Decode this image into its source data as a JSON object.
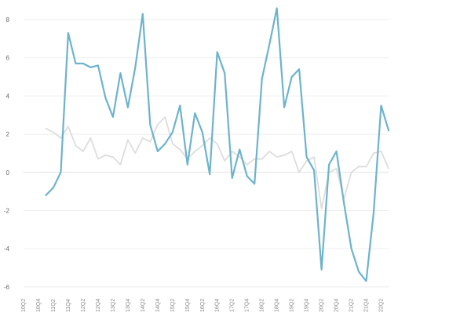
{
  "chart_data": {
    "type": "line",
    "title": "",
    "xlabel": "",
    "ylabel": "",
    "ylim": [
      -6.5,
      8.7
    ],
    "y_ticks": [
      -6,
      -4,
      -2,
      0,
      2,
      4,
      6,
      8
    ],
    "grid": true,
    "x": [
      "10Q2",
      "10Q3",
      "10Q4",
      "11Q1",
      "11Q2",
      "11Q3",
      "11Q4",
      "12Q1",
      "12Q2",
      "12Q3",
      "12Q4",
      "13Q1",
      "13Q2",
      "13Q3",
      "13Q4",
      "14Q1",
      "14Q2",
      "14Q3",
      "14Q4",
      "15Q1",
      "15Q2",
      "15Q3",
      "15Q4",
      "16Q1",
      "16Q2",
      "16Q3",
      "16Q4",
      "17Q1",
      "17Q2",
      "17Q3",
      "17Q4",
      "18Q1",
      "18Q2",
      "18Q3",
      "18Q4",
      "19Q1",
      "19Q2",
      "19Q3",
      "19Q4",
      "20Q1",
      "20Q2",
      "20Q3",
      "20Q4",
      "21Q1",
      "21Q2",
      "21Q3",
      "21Q4",
      "22Q1",
      "22Q2",
      "22Q3"
    ],
    "x_tick_labels": [
      "10Q2",
      "10Q4",
      "11Q2",
      "11Q4",
      "12Q2",
      "12Q4",
      "13Q2",
      "13Q4",
      "14Q2",
      "14Q4",
      "15Q2",
      "15Q4",
      "16Q2",
      "16Q4",
      "17Q2",
      "17Q4",
      "18Q2",
      "18Q4",
      "19Q2",
      "19Q4",
      "20Q2",
      "20Q4",
      "21Q2",
      "21Q4",
      "22Q2"
    ],
    "series": [
      {
        "color": "#6db3cb",
        "values": [
          null,
          null,
          null,
          -1.2,
          -0.8,
          0.0,
          7.3,
          5.7,
          5.7,
          5.5,
          5.6,
          3.9,
          2.9,
          5.2,
          3.4,
          5.5,
          8.3,
          2.5,
          1.1,
          1.5,
          2.1,
          3.5,
          0.4,
          3.1,
          2.1,
          -0.1,
          6.3,
          5.2,
          -0.3,
          1.2,
          -0.2,
          -0.6,
          4.9,
          6.7,
          8.6,
          3.4,
          5.0,
          5.4,
          0.8,
          0.1,
          -5.1,
          0.4,
          1.1,
          -1.6,
          -4.0,
          -5.2,
          -5.7,
          -2.1,
          3.5,
          2.2
        ]
      },
      {
        "color": "#dddddd",
        "values": [
          null,
          null,
          null,
          2.3,
          2.1,
          1.8,
          2.4,
          1.4,
          1.1,
          1.8,
          0.7,
          0.9,
          0.8,
          0.4,
          1.7,
          1.0,
          1.8,
          1.6,
          2.5,
          2.9,
          1.5,
          1.2,
          0.7,
          1.1,
          1.4,
          1.8,
          1.5,
          0.6,
          1.1,
          0.8,
          0.4,
          0.7,
          0.7,
          1.1,
          0.8,
          0.9,
          1.1,
          0.0,
          0.6,
          0.8,
          -1.9,
          0.0,
          0.2,
          -1.4,
          0.0,
          0.3,
          0.3,
          1.0,
          1.1,
          0.2
        ]
      }
    ]
  }
}
